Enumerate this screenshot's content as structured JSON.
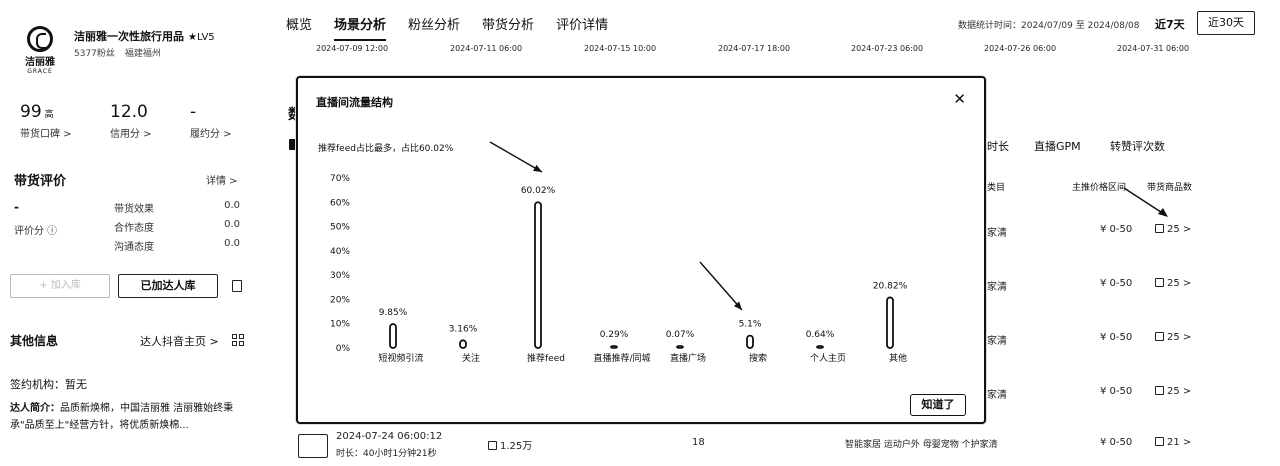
{
  "shop": {
    "logo_text": "洁丽雅",
    "logo_sub": "GRACE",
    "name": "洁丽雅一次性旅行用品",
    "level": "★LV5",
    "fans": "5377粉丝",
    "location": "福建福州"
  },
  "stats": [
    {
      "value": "99",
      "unit": "高",
      "label": "带货口碑 >"
    },
    {
      "value": "12.0",
      "unit": "",
      "label": "信用分 >"
    },
    {
      "value": "-",
      "unit": "",
      "label": "履约分 >"
    }
  ],
  "evaluation": {
    "title": "带货评价",
    "detail_link": "详情 >",
    "score": "-",
    "score_label": "评价分 ⓘ",
    "rows": [
      {
        "label": "带货效果",
        "value": "0.0"
      },
      {
        "label": "合作态度",
        "value": "0.0"
      },
      {
        "label": "沟通态度",
        "value": "0.0"
      }
    ]
  },
  "actions": {
    "ghost_button": "+ 加入库",
    "added_button": "已加达人库"
  },
  "other": {
    "title": "其他信息",
    "link": "达人抖音主页 >",
    "sign_label": "签约机构：",
    "sign_value": "暂无",
    "intro_label": "达人简介：",
    "intro_text": "品质新焕棉，中国洁丽雅 洁丽雅始终秉承\"品质至上\"经营方针，将优质新焕棉..."
  },
  "nav": {
    "tabs": [
      "概览",
      "场景分析",
      "粉丝分析",
      "带货分析",
      "评价详情"
    ],
    "active": 1,
    "range_label": "数据统计时间：2024/07/09 至 2024/08/08",
    "range_7": "近7天",
    "range_30": "近30天"
  },
  "timeline": [
    "2024-07-09 12:00",
    "2024-07-11 06:00",
    "2024-07-15 10:00",
    "2024-07-17 18:00",
    "2024-07-23 06:00",
    "2024-07-26 06:00",
    "2024-07-31 06:00"
  ],
  "background_table": {
    "section_initial": "数",
    "col_duration": "时长",
    "col_gpm": "直播GPM",
    "col_reviews": "转赞评次数",
    "sub_category": "类目",
    "sub_price": "主推价格区间",
    "sub_goods": "带货商品数",
    "rows": [
      {
        "category": "家清",
        "price": "¥ 0-50",
        "goods": "25 >"
      },
      {
        "category": "家清",
        "price": "¥ 0-50",
        "goods": "25 >"
      },
      {
        "category": "家清",
        "price": "¥ 0-50",
        "goods": "25 >"
      },
      {
        "category": "家清",
        "price": "¥ 0-50",
        "goods": "25 >"
      },
      {
        "category": "智能家居 运动户外 母婴宠物 个护家清",
        "price": "¥ 0-50",
        "goods": "21 >"
      }
    ],
    "last_row_time": "2024-07-24 06:00:12",
    "last_row_duration": "时长：40小时1分钟21秒",
    "last_row_viewers": "1.25万",
    "last_row_count": "18"
  },
  "modal": {
    "title": "直播间流量结构",
    "note": "推荐feed占比最多，占比60.02%",
    "ok_button": "知道了"
  },
  "chart_data": {
    "type": "bar",
    "title": "直播间流量结构",
    "categories": [
      "短视频引流",
      "关注",
      "推荐feed",
      "直播推荐/同城",
      "直播广场",
      "搜索",
      "个人主页",
      "其他"
    ],
    "values": [
      9.85,
      3.16,
      60.02,
      0.29,
      0.07,
      5.1,
      0.64,
      20.82
    ],
    "value_labels": [
      "9.85%",
      "3.16%",
      "60.02%",
      "0.29%",
      "0.07%",
      "5.1%",
      "0.64%",
      "20.82%"
    ],
    "y_ticks": [
      "0%",
      "10%",
      "20%",
      "30%",
      "40%",
      "50%",
      "60%",
      "70%"
    ],
    "ylim": [
      0,
      70
    ],
    "grid": false
  }
}
